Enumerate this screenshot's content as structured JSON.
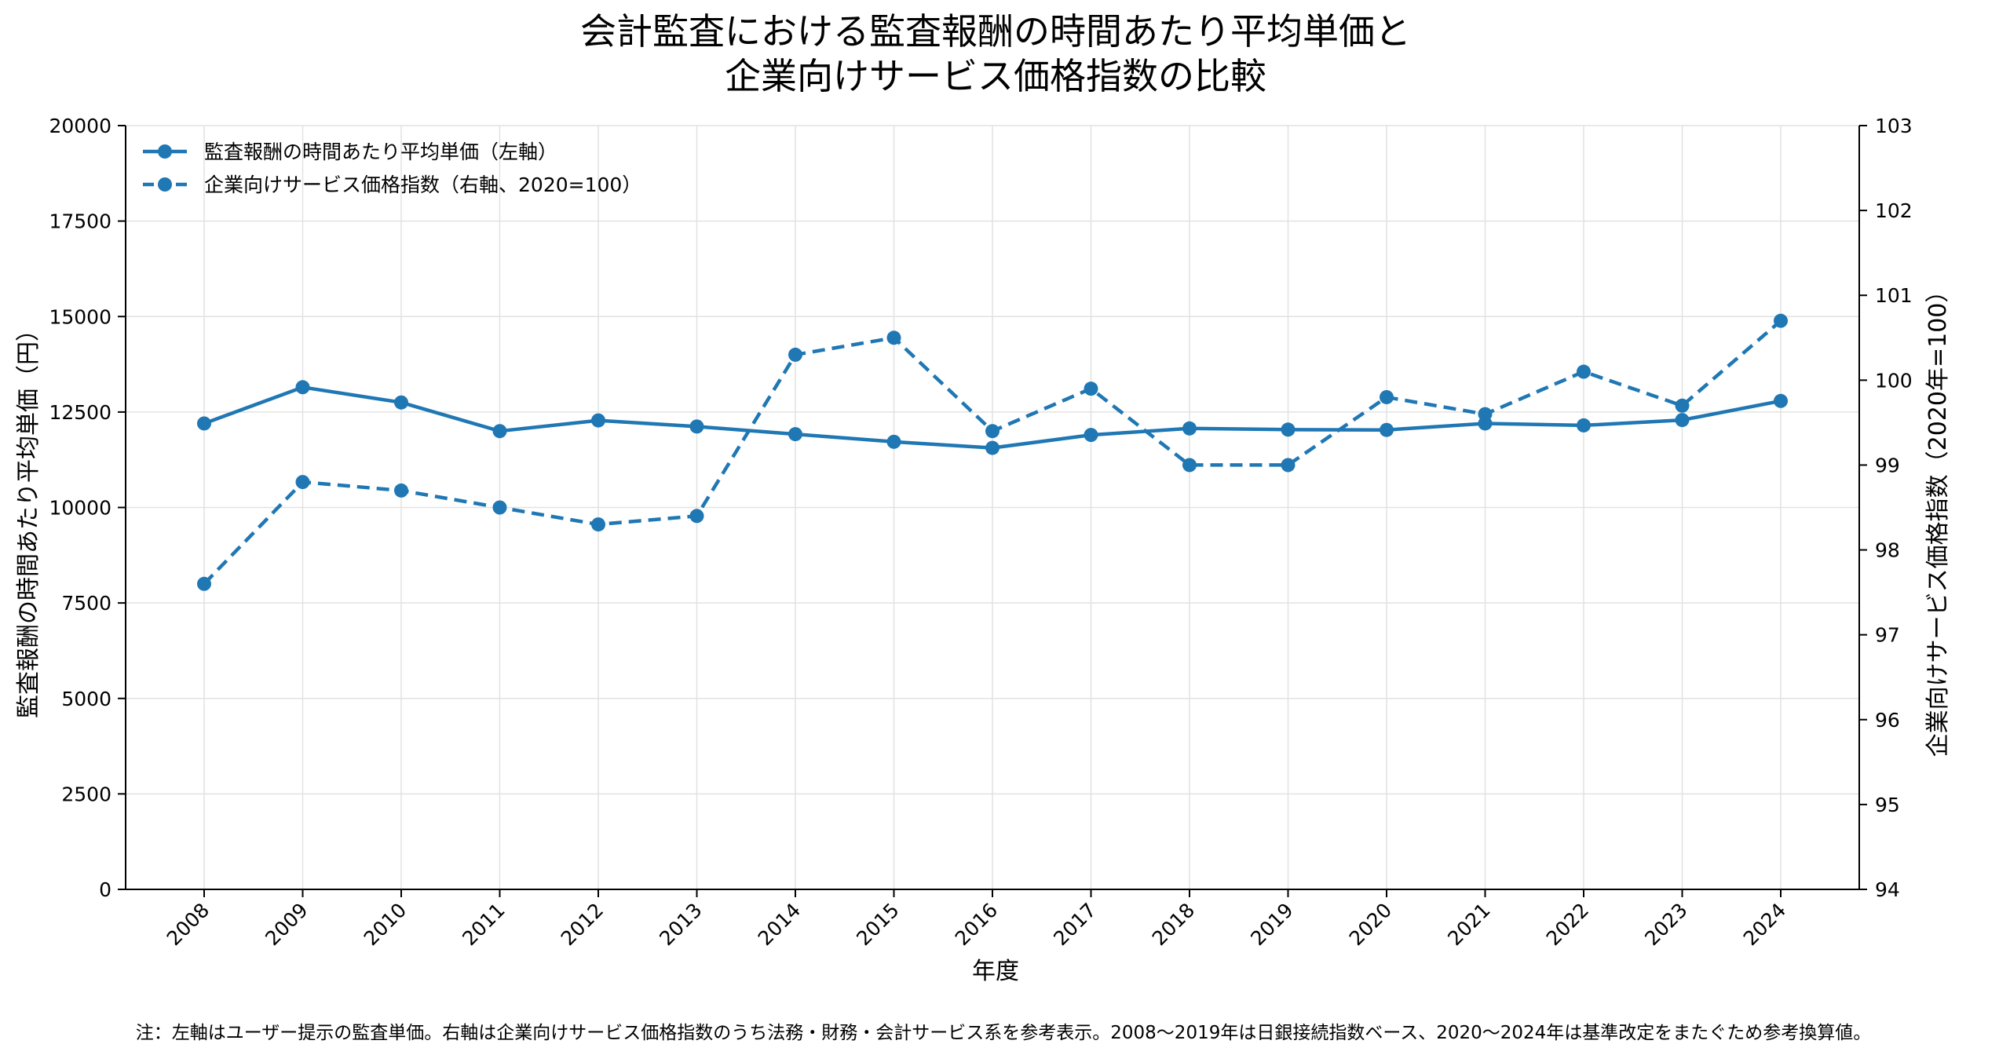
{
  "chart_data": {
    "type": "line",
    "title_lines": [
      "会計監査における監査報酬の時間あたり平均単価と",
      "企業向けサービス価格指数の比較"
    ],
    "xlabel": "年度",
    "ylabel_left": "監査報酬の時間あたり平均単価（円）",
    "ylabel_right": "企業向けサービス価格指数（2020年=100）",
    "categories": [
      "2008",
      "2009",
      "2010",
      "2011",
      "2012",
      "2013",
      "2014",
      "2015",
      "2016",
      "2017",
      "2018",
      "2019",
      "2020",
      "2021",
      "2022",
      "2023",
      "2024"
    ],
    "ylim_left": [
      0,
      20000
    ],
    "yticks_left": [
      "0",
      "2500",
      "5000",
      "7500",
      "10000",
      "12500",
      "15000",
      "17500",
      "20000"
    ],
    "ylim_right": [
      94,
      103
    ],
    "yticks_right": [
      "94",
      "95",
      "96",
      "97",
      "98",
      "99",
      "100",
      "101",
      "102",
      "103"
    ],
    "grid": true,
    "legend_position": "top-left",
    "series": [
      {
        "name": "監査報酬の時間あたり平均単価（左軸）",
        "axis": "left",
        "line_style": "solid",
        "color": "#1f77b4",
        "values": [
          12200,
          13150,
          12750,
          12000,
          12280,
          12120,
          11920,
          11720,
          11560,
          11900,
          12070,
          12040,
          12030,
          12200,
          12150,
          12290,
          12790
        ]
      },
      {
        "name": "企業向けサービス価格指数（右軸、2020=100）",
        "axis": "right",
        "line_style": "dashed",
        "color": "#1f77b4",
        "values": [
          97.6,
          98.8,
          98.7,
          98.5,
          98.3,
          98.4,
          100.3,
          100.5,
          99.4,
          99.9,
          99.0,
          99.0,
          99.8,
          99.6,
          100.1,
          99.7,
          100.7
        ]
      }
    ],
    "note": "注：左軸はユーザー提示の監査単価。右軸は企業向けサービス価格指数のうち法務・財務・会計サービス系を参考表示。2008〜2019年は日銀接続指数ベース、2020〜2024年は基準改定をまたぐため参考換算値。"
  }
}
